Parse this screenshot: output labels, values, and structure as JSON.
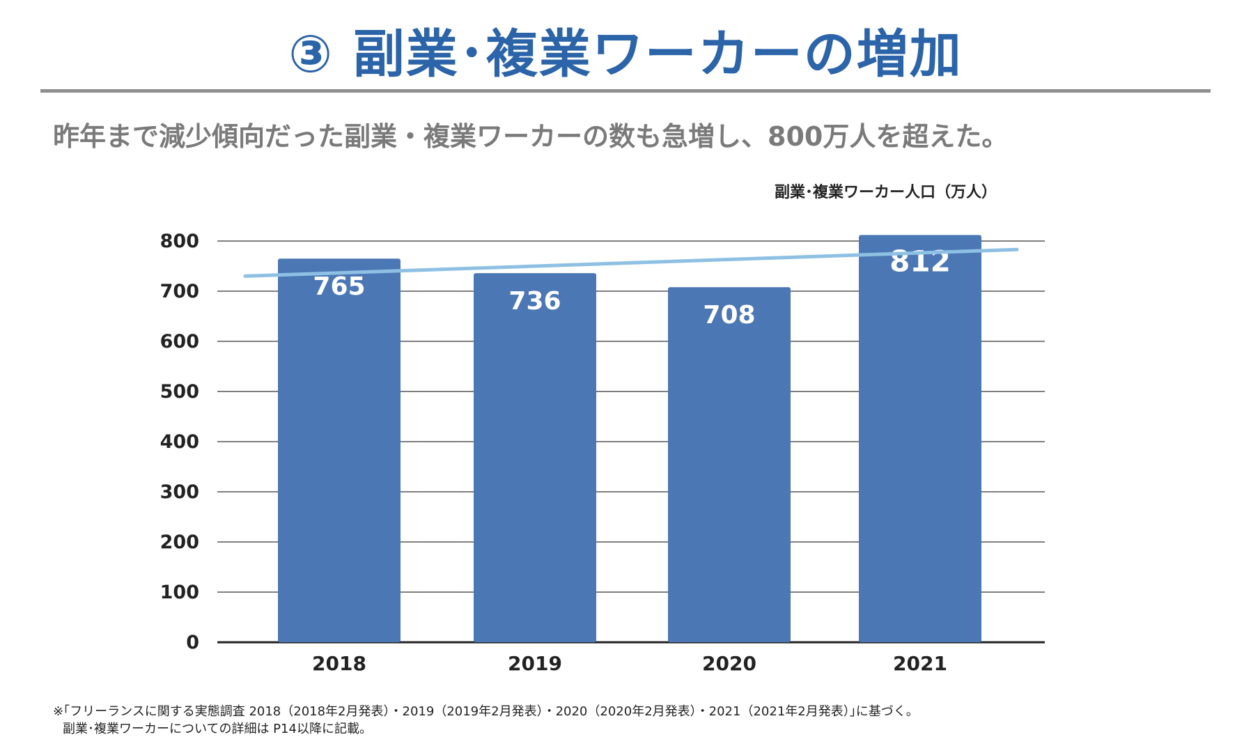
{
  "header": {
    "title": "③ 副業･複業ワーカーの増加",
    "subtitle": "昨年まで減少傾向だった副業・複業ワーカーの数も急増し、800万人を超えた。"
  },
  "chart_data": {
    "type": "bar",
    "title": "副業･複業ワーカー人口（万人）",
    "categories": [
      "2018",
      "2019",
      "2020",
      "2021"
    ],
    "values": [
      765,
      736,
      708,
      812
    ],
    "ylim": [
      0,
      800
    ],
    "yticks": [
      0,
      100,
      200,
      300,
      400,
      500,
      600,
      700,
      800
    ],
    "grid": true,
    "trendline": {
      "start": 730,
      "end": 783
    },
    "bar_color": "#4B77B4",
    "trend_color": "#8EC0E4"
  },
  "footnote": {
    "line1": "※｢フリーランスに関する実態調査 2018（2018年2月発表）・2019（2019年2月発表）・2020（2020年2月発表）・2021（2021年2月発表）｣に基づく。",
    "line2": "副業･複業ワーカーについての詳細は P14以降に記載。"
  }
}
